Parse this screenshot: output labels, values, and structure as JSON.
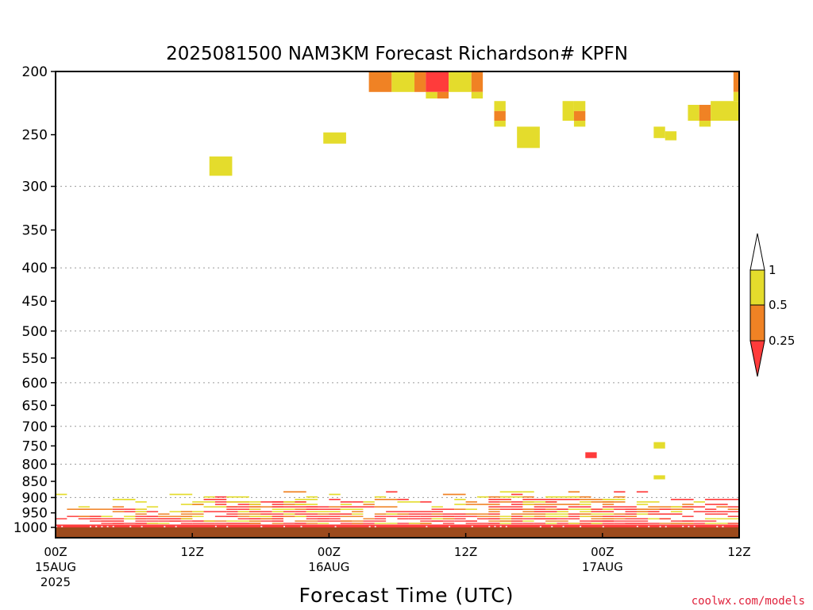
{
  "chart_data": {
    "type": "heatmap",
    "title": "2025081500 NAM3KM Forecast Richardson# KPFN",
    "xlabel": "Forecast Time (UTC)",
    "ylabel": "",
    "x_unit": "forecast hours from 2025-08-15 00Z",
    "xlim": [
      0,
      60
    ],
    "y_axis": "pressure (hPa), log scale, increasing downward",
    "ylim": [
      1000,
      200
    ],
    "y_ticks": [
      "200",
      "250",
      "300",
      "350",
      "400",
      "450",
      "500",
      "550",
      "600",
      "650",
      "700",
      "750",
      "800",
      "850",
      "900",
      "950",
      "1000"
    ],
    "x_ticks": [
      {
        "label": "00Z",
        "date": "15AUG",
        "year": "2025"
      },
      {
        "label": "12Z",
        "date": "",
        "year": ""
      },
      {
        "label": "00Z",
        "date": "16AUG",
        "year": ""
      },
      {
        "label": "12Z",
        "date": "",
        "year": ""
      },
      {
        "label": "00Z",
        "date": "17AUG",
        "year": ""
      },
      {
        "label": "12Z",
        "date": "",
        "year": ""
      }
    ],
    "grid": "dotted horizontal lines at 300, 400, 500, 600, 700, 800, 900 hPa",
    "colorbar": {
      "levels": [
        "0.25",
        "0.5",
        "1"
      ],
      "colors": {
        "lt_0.25": "#ff3b3b",
        "0.25_0.5": "#f08224",
        "0.5_1": "#e4dc2c",
        "gt_1": "#ffffff"
      }
    },
    "ground_color": "#9c4a1c",
    "upper_level_cells": [
      {
        "t0": 27.5,
        "t1": 29.5,
        "p_top": 200,
        "p_bot": 215,
        "cat": "orange"
      },
      {
        "t0": 29.5,
        "t1": 31.5,
        "p_top": 200,
        "p_bot": 215,
        "cat": "yellow"
      },
      {
        "t0": 31.5,
        "t1": 32.5,
        "p_top": 200,
        "p_bot": 215,
        "cat": "orange"
      },
      {
        "t0": 32.5,
        "t1": 34.5,
        "p_top": 200,
        "p_bot": 215,
        "cat": "red"
      },
      {
        "t0": 34.5,
        "t1": 36.5,
        "p_top": 200,
        "p_bot": 215,
        "cat": "yellow"
      },
      {
        "t0": 36.5,
        "t1": 37.5,
        "p_top": 200,
        "p_bot": 215,
        "cat": "orange"
      },
      {
        "t0": 32.5,
        "t1": 33.5,
        "p_top": 215,
        "p_bot": 220,
        "cat": "yellow"
      },
      {
        "t0": 33.5,
        "t1": 34.5,
        "p_top": 215,
        "p_bot": 220,
        "cat": "orange"
      },
      {
        "t0": 36.5,
        "t1": 37.5,
        "p_top": 215,
        "p_bot": 220,
        "cat": "yellow"
      },
      {
        "t0": 38.5,
        "t1": 39.5,
        "p_top": 222,
        "p_bot": 230,
        "cat": "yellow"
      },
      {
        "t0": 38.5,
        "t1": 39.5,
        "p_top": 230,
        "p_bot": 238,
        "cat": "orange"
      },
      {
        "t0": 38.5,
        "t1": 39.5,
        "p_top": 238,
        "p_bot": 243,
        "cat": "yellow"
      },
      {
        "t0": 40.5,
        "t1": 42.5,
        "p_top": 243,
        "p_bot": 262,
        "cat": "yellow"
      },
      {
        "t0": 44.5,
        "t1": 45.5,
        "p_top": 222,
        "p_bot": 238,
        "cat": "yellow"
      },
      {
        "t0": 45.5,
        "t1": 46.5,
        "p_top": 222,
        "p_bot": 230,
        "cat": "yellow"
      },
      {
        "t0": 45.5,
        "t1": 46.5,
        "p_top": 230,
        "p_bot": 238,
        "cat": "orange"
      },
      {
        "t0": 45.5,
        "t1": 46.5,
        "p_top": 238,
        "p_bot": 243,
        "cat": "yellow"
      },
      {
        "t0": 52.5,
        "t1": 53.5,
        "p_top": 243,
        "p_bot": 253,
        "cat": "yellow"
      },
      {
        "t0": 53.5,
        "t1": 54.5,
        "p_top": 247,
        "p_bot": 255,
        "cat": "yellow"
      },
      {
        "t0": 55.5,
        "t1": 56.5,
        "p_top": 225,
        "p_bot": 238,
        "cat": "yellow"
      },
      {
        "t0": 56.5,
        "t1": 57.5,
        "p_top": 225,
        "p_bot": 238,
        "cat": "orange"
      },
      {
        "t0": 56.5,
        "t1": 57.5,
        "p_top": 238,
        "p_bot": 243,
        "cat": "yellow"
      },
      {
        "t0": 57.5,
        "t1": 60,
        "p_top": 222,
        "p_bot": 238,
        "cat": "yellow"
      },
      {
        "t0": 59.5,
        "t1": 60,
        "p_top": 200,
        "p_bot": 215,
        "cat": "orange"
      },
      {
        "t0": 59.5,
        "t1": 60,
        "p_top": 215,
        "p_bot": 222,
        "cat": "yellow"
      },
      {
        "t0": 13.5,
        "t1": 15.5,
        "p_top": 270,
        "p_bot": 289,
        "cat": "yellow"
      },
      {
        "t0": 23.5,
        "t1": 25.5,
        "p_top": 248,
        "p_bot": 258,
        "cat": "yellow"
      },
      {
        "t0": 46.5,
        "t1": 47.5,
        "p_top": 767,
        "p_bot": 783,
        "cat": "red"
      },
      {
        "t0": 52.5,
        "t1": 53.5,
        "p_top": 740,
        "p_bot": 757,
        "cat": "yellow"
      },
      {
        "t0": 52.5,
        "t1": 53.5,
        "p_top": 832,
        "p_bot": 844,
        "cat": "yellow"
      }
    ],
    "low_level_band": {
      "p_top": 880,
      "p_bot": 1000,
      "pattern": "mixed <0.25 / 0.25-0.5 / 0.5-1 values, mostly <0.25 near the surface"
    }
  },
  "credit": "coolwx.com/models"
}
